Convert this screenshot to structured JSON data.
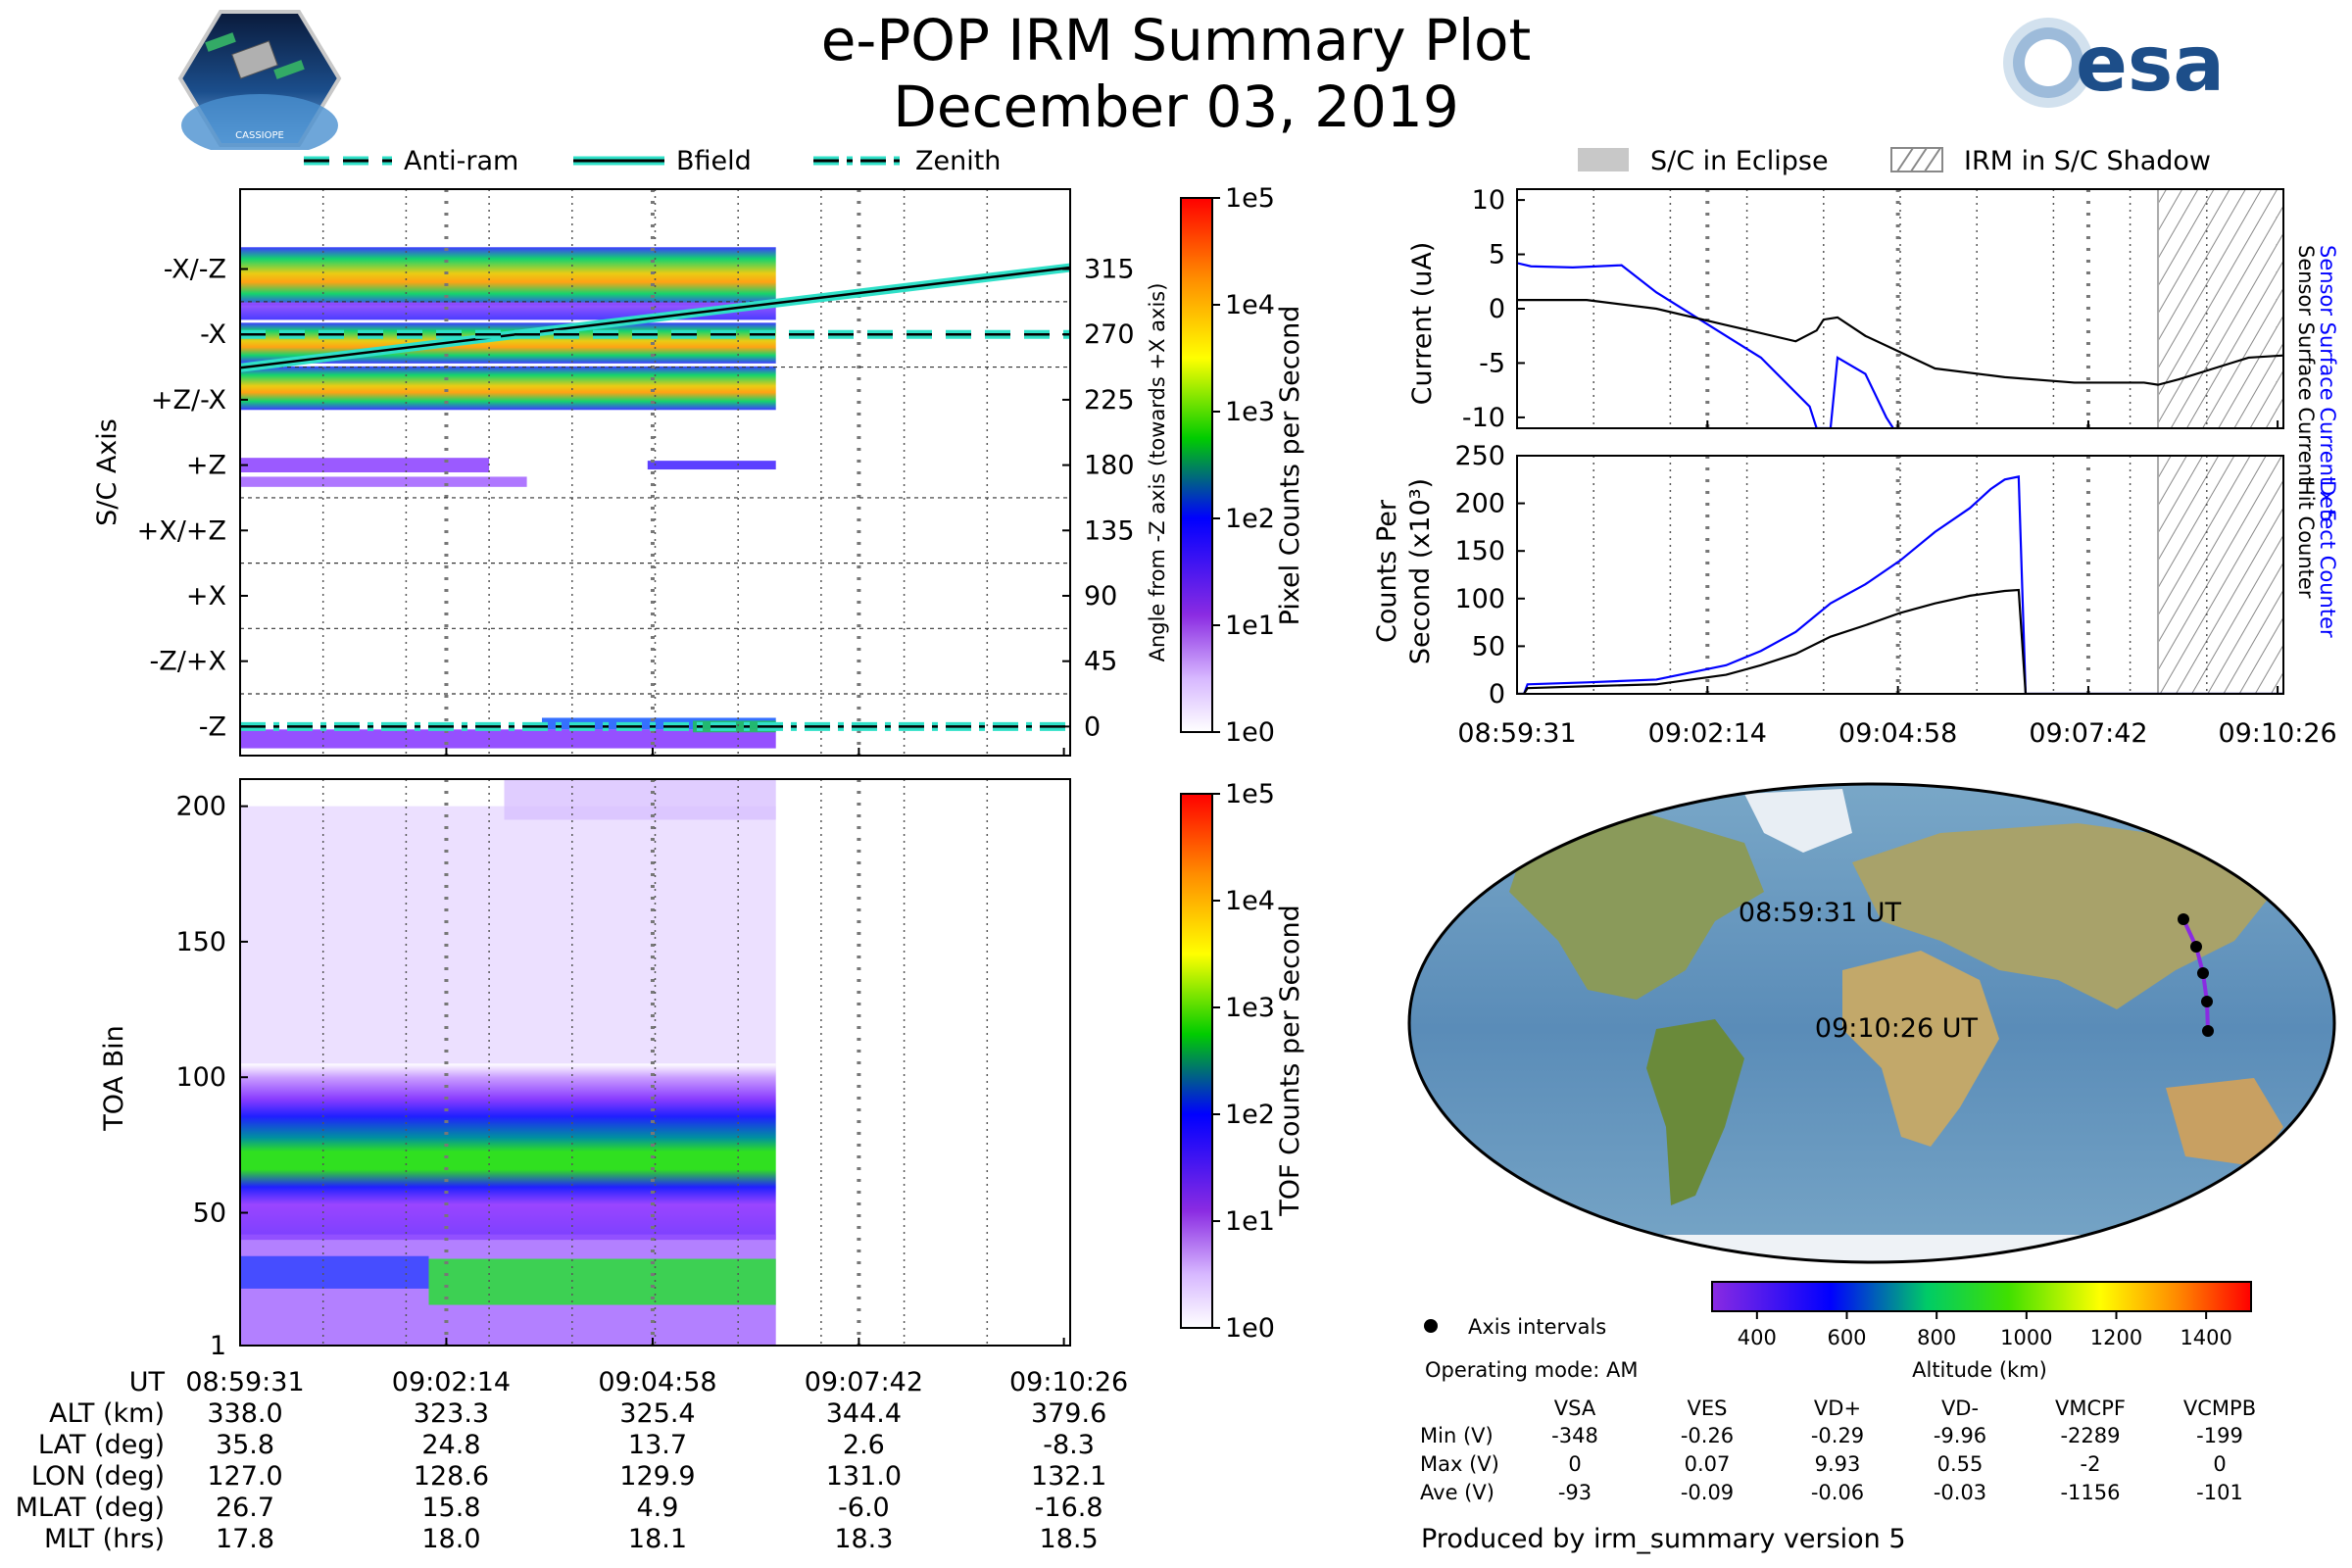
{
  "header": {
    "title": "e-POP IRM Summary Plot",
    "date": "December 03, 2019",
    "logo_left": "CASSIOPE",
    "logo_right": "esa"
  },
  "legend_top_left": [
    {
      "label": "Anti-ram",
      "style": "dash"
    },
    {
      "label": "Bfield",
      "style": "solid"
    },
    {
      "label": "Zenith",
      "style": "dashdot"
    }
  ],
  "legend_top_right": [
    {
      "label": "S/C in Eclipse"
    },
    {
      "label": "IRM in S/C Shadow"
    }
  ],
  "colors": {
    "cyan": "#2fe0c8",
    "blue": "#0000ff",
    "black": "#000000"
  },
  "chart_data": [
    {
      "type": "heatmap",
      "name": "Sensor axis image",
      "ylabel": "S/C Axis",
      "y2label": "Angle from -Z axis (towards +X axis)",
      "yticklabels": [
        "-X/-Z",
        "-X",
        "+Z/-X",
        "+Z",
        "+X/+Z",
        "+X",
        "-Z/+X",
        "-Z"
      ],
      "y2ticks": [
        315,
        270,
        225,
        180,
        135,
        90,
        45,
        0
      ],
      "ylim": [
        -20,
        370
      ],
      "colorbar": {
        "label": "Pixel Counts per Second",
        "ticks": [
          "1e0",
          "1e1",
          "1e2",
          "1e3",
          "1e4",
          "1e5"
        ]
      },
      "lines": [
        {
          "name": "Bfield",
          "x_min": [
            0,
            11
          ],
          "deg": [
            247,
            316
          ]
        },
        {
          "name": "Anti-ram",
          "x_min": [
            0,
            11
          ],
          "deg": [
            270,
            270
          ]
        },
        {
          "name": "Zenith",
          "x_min": [
            0,
            11
          ],
          "deg": [
            0,
            0
          ]
        }
      ]
    },
    {
      "type": "heatmap",
      "name": "TOA image",
      "ylabel": "TOA Bin",
      "yticks": [
        1,
        50,
        100,
        150,
        200
      ],
      "ylim": [
        1,
        210
      ],
      "colorbar": {
        "label": "TOF Counts per Second",
        "ticks": [
          "1e0",
          "1e1",
          "1e2",
          "1e3",
          "1e4",
          "1e5"
        ]
      },
      "xticklabels": [
        "08:59:31",
        "09:02:14",
        "09:04:58",
        "09:07:42",
        "09:10:26"
      ]
    },
    {
      "type": "line",
      "name": "Sensor Surface Current",
      "ylabel": "Current (uA)",
      "y2label_blue": "Sensor Surface Current x 5",
      "y2label_black": "Sensor Surface Current",
      "yticks": [
        10,
        5,
        0,
        -5,
        -10
      ],
      "ylim": [
        -11,
        11
      ],
      "series": [
        {
          "name": "Sensor Surface Current x 5",
          "color": "#0000ff",
          "x": [
            0,
            0.2,
            0.8,
            1.5,
            2.0,
            3.5,
            4.2,
            4.3,
            4.5,
            4.6,
            5.0,
            5.3,
            5.4
          ],
          "y": [
            4.2,
            3.9,
            3.8,
            4.0,
            1.5,
            -4.5,
            -9.0,
            -11.0,
            -11.0,
            -4.5,
            -6.0,
            -10.0,
            -11.0
          ]
        },
        {
          "name": "Sensor Surface Current",
          "color": "#000000",
          "x": [
            0,
            1.0,
            2.0,
            3.0,
            4.0,
            4.3,
            4.4,
            4.6,
            5.0,
            6.0,
            7.0,
            8.0,
            9.0,
            9.2,
            9.5,
            10.0,
            10.5,
            11.0
          ],
          "y": [
            0.8,
            0.8,
            0.0,
            -1.5,
            -3.0,
            -2.0,
            -1.0,
            -0.8,
            -2.5,
            -5.5,
            -6.3,
            -6.8,
            -6.8,
            -7.0,
            -6.5,
            -5.5,
            -4.5,
            -4.3
          ]
        }
      ]
    },
    {
      "type": "line",
      "name": "Counts Per Second",
      "ylabel": "Counts Per Second (x10³)",
      "y2label_blue": "Detect Counter",
      "y2label_black": "Hit Counter",
      "yticks": [
        0,
        50,
        100,
        150,
        200,
        250
      ],
      "ylim": [
        0,
        250
      ],
      "xticklabels": [
        "08:59:31",
        "09:02:14",
        "09:04:58",
        "09:07:42",
        "09:10:26"
      ],
      "series": [
        {
          "name": "Detect Counter",
          "color": "#0000ff",
          "x": [
            0,
            0.1,
            0.15,
            1.0,
            2.0,
            3.0,
            3.5,
            4.0,
            4.5,
            5.0,
            5.5,
            6.0,
            6.5,
            6.8,
            7.0,
            7.2,
            7.3,
            11.0
          ],
          "y": [
            0,
            0,
            10,
            12,
            15,
            30,
            45,
            65,
            95,
            115,
            140,
            170,
            195,
            215,
            225,
            228,
            0,
            0
          ]
        },
        {
          "name": "Hit Counter",
          "color": "#000000",
          "x": [
            0,
            0.1,
            0.15,
            1.0,
            2.0,
            3.0,
            3.5,
            4.0,
            4.5,
            5.0,
            5.5,
            6.0,
            6.5,
            6.8,
            7.0,
            7.2,
            7.3,
            11.0
          ],
          "y": [
            0,
            0,
            6,
            8,
            10,
            20,
            30,
            42,
            60,
            72,
            85,
            95,
            103,
            106,
            108,
            109,
            0,
            0
          ]
        }
      ]
    }
  ],
  "eclipse_shadow": {
    "start_min": 9.2,
    "end_min": 11.0
  },
  "map": {
    "labels": {
      "start": "08:59:31 UT",
      "end": "09:10:26 UT"
    },
    "track_dots": 5,
    "colorbar": {
      "label": "Altitude (km)",
      "ticks": [
        400,
        600,
        800,
        1000,
        1200,
        1400
      ],
      "range": [
        300,
        1500
      ]
    }
  },
  "map_legend": {
    "axis_intervals": "Axis intervals",
    "operating_mode": "Operating mode: AM"
  },
  "stats": {
    "headers": [
      "VSA",
      "VES",
      "VD+",
      "VD-",
      "VMCPF",
      "VCMPB"
    ],
    "rows": [
      {
        "label": "Min (V)",
        "values": [
          "-348",
          "-0.26",
          "-0.29",
          "-9.96",
          "-2289",
          "-199"
        ]
      },
      {
        "label": "Max (V)",
        "values": [
          "0",
          "0.07",
          "9.93",
          "0.55",
          "-2",
          "0"
        ]
      },
      {
        "label": "Ave (V)",
        "values": [
          "-93",
          "-0.09",
          "-0.06",
          "-0.03",
          "-1156",
          "-101"
        ]
      }
    ]
  },
  "footer": "Produced by irm_summary version 5",
  "ephemeris": {
    "header": "UT",
    "times": [
      "08:59:31",
      "09:02:14",
      "09:04:58",
      "09:07:42",
      "09:10:26"
    ],
    "rows": [
      {
        "label": "ALT (km)",
        "values": [
          "338.0",
          "323.3",
          "325.4",
          "344.4",
          "379.6"
        ]
      },
      {
        "label": "LAT (deg)",
        "values": [
          "35.8",
          "24.8",
          "13.7",
          "2.6",
          "-8.3"
        ]
      },
      {
        "label": "LON (deg)",
        "values": [
          "127.0",
          "128.6",
          "129.9",
          "131.0",
          "132.1"
        ]
      },
      {
        "label": "MLAT (deg)",
        "values": [
          "26.7",
          "15.8",
          "4.9",
          "-6.0",
          "-16.8"
        ]
      },
      {
        "label": "MLT (hrs)",
        "values": [
          "17.8",
          "18.0",
          "18.1",
          "18.3",
          "18.5"
        ]
      }
    ]
  }
}
